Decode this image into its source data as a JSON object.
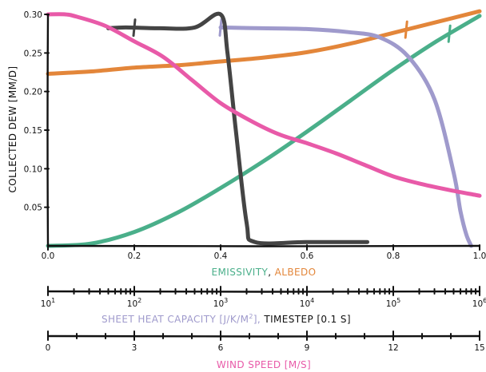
{
  "colors": {
    "emissivity": "#4aaf8a",
    "albedo": "#e3863a",
    "heat_capacity": "#9f9acc",
    "timestep": "#444444",
    "wind_speed": "#e85aa8",
    "black": "#111111"
  },
  "labels": {
    "ylabel": "COLLECTED DEW [MM/D]",
    "axis1_part1": "EMISSIVITY",
    "axis1_sep": ", ",
    "axis1_part2": "ALBEDO",
    "axis2_part1": "SHEET HEAT CAPACITY [J/K/M",
    "axis2_sup": "2",
    "axis2_part2": "],",
    "axis2_part3": " TIMESTEP [0.1 S]",
    "axis3": "WIND SPEED [M/S]"
  },
  "chart_data": {
    "type": "line",
    "style": "xkcd",
    "ylabel": "COLLECTED DEW [MM/D]",
    "ylim": [
      0,
      0.3
    ],
    "yticks": [
      "0.05",
      "0.10",
      "0.15",
      "0.20",
      "0.25",
      "0.30"
    ],
    "yticks_values": [
      0.05,
      0.1,
      0.15,
      0.2,
      0.25,
      0.3
    ],
    "x_axes": [
      {
        "label": "EMISSIVITY, ALBEDO",
        "range": [
          0,
          1
        ],
        "ticks": [
          0,
          0.2,
          0.4,
          0.6,
          0.8,
          1
        ],
        "ticklabels": [
          "0.0",
          "0.2",
          "0.4",
          "0.6",
          "0.8",
          "1.0"
        ]
      },
      {
        "label": "SHEET HEAT CAPACITY [J/K/M2], TIMESTEP [0.1 S]",
        "scale": "log",
        "range": [
          10,
          1000000
        ],
        "ticks": [
          10,
          100,
          1000,
          10000,
          100000,
          1000000
        ],
        "ticklabels": [
          "10^1",
          "10^2",
          "10^3",
          "10^4",
          "10^5",
          "10^6"
        ]
      },
      {
        "label": "WIND SPEED [M/S]",
        "range": [
          0,
          15
        ],
        "ticks": [
          0,
          3,
          6,
          9,
          12,
          15
        ],
        "ticklabels": [
          "0",
          "3",
          "6",
          "9",
          "12",
          "15"
        ]
      }
    ],
    "series": [
      {
        "key": "emissivity",
        "axis": "emissivity_albedo",
        "x": [
          0.0,
          0.1,
          0.2,
          0.3,
          0.4,
          0.5,
          0.6,
          0.7,
          0.8,
          0.9,
          1.0
        ],
        "y": [
          0.0,
          0.003,
          0.018,
          0.043,
          0.075,
          0.11,
          0.148,
          0.188,
          0.228,
          0.265,
          0.298
        ],
        "marker": 0.93
      },
      {
        "key": "albedo",
        "axis": "emissivity_albedo",
        "x": [
          0.0,
          0.1,
          0.2,
          0.3,
          0.4,
          0.5,
          0.6,
          0.7,
          0.8,
          0.9,
          1.0
        ],
        "y": [
          0.223,
          0.226,
          0.231,
          0.234,
          0.239,
          0.244,
          0.251,
          0.262,
          0.276,
          0.29,
          0.304
        ],
        "marker": 0.83
      },
      {
        "key": "heat_capacity",
        "axis": "log",
        "x": [
          1000,
          3000,
          10000,
          30000,
          70000,
          150000,
          300000,
          500000,
          600000,
          700000,
          800000
        ],
        "y": [
          0.283,
          0.282,
          0.281,
          0.277,
          0.27,
          0.245,
          0.19,
          0.095,
          0.045,
          0.015,
          0.0
        ],
        "marker": 1000
      },
      {
        "key": "timestep",
        "axis": "log",
        "x": [
          50,
          80,
          200,
          500,
          1000,
          1200,
          1500,
          2000,
          2500,
          10000,
          50000
        ],
        "y": [
          0.282,
          0.283,
          0.282,
          0.283,
          0.3,
          0.25,
          0.15,
          0.03,
          0.005,
          0.005,
          0.005
        ],
        "marker": 100
      },
      {
        "key": "wind_speed",
        "axis": "wind_speed",
        "x": [
          0,
          0.6,
          1,
          2,
          3,
          4,
          5,
          6,
          7,
          8,
          9,
          10,
          11,
          12,
          13,
          14,
          15
        ],
        "y": [
          0.3,
          0.3,
          0.297,
          0.285,
          0.265,
          0.245,
          0.215,
          0.185,
          0.163,
          0.145,
          0.133,
          0.12,
          0.105,
          0.09,
          0.08,
          0.072,
          0.065
        ]
      }
    ]
  }
}
